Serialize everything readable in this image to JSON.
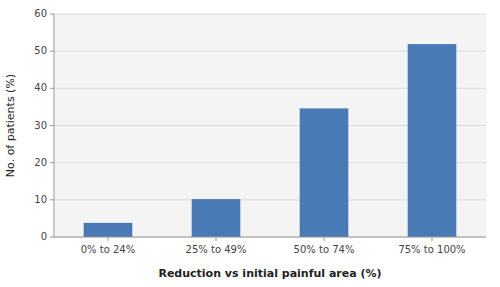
{
  "chart_data": {
    "type": "bar",
    "categories": [
      "0% to 24%",
      "25% to 49%",
      "50% to 74%",
      "75% to 100%"
    ],
    "values": [
      3.8,
      10.2,
      34.6,
      51.9
    ],
    "color": "#4a7ab5",
    "xlabel": "Reduction vs initial painful area (%)",
    "ylabel": "No. of patients (%)",
    "ylim": [
      0,
      60
    ],
    "yticks": [
      0,
      10,
      20,
      30,
      40,
      50,
      60
    ],
    "grid": true
  }
}
